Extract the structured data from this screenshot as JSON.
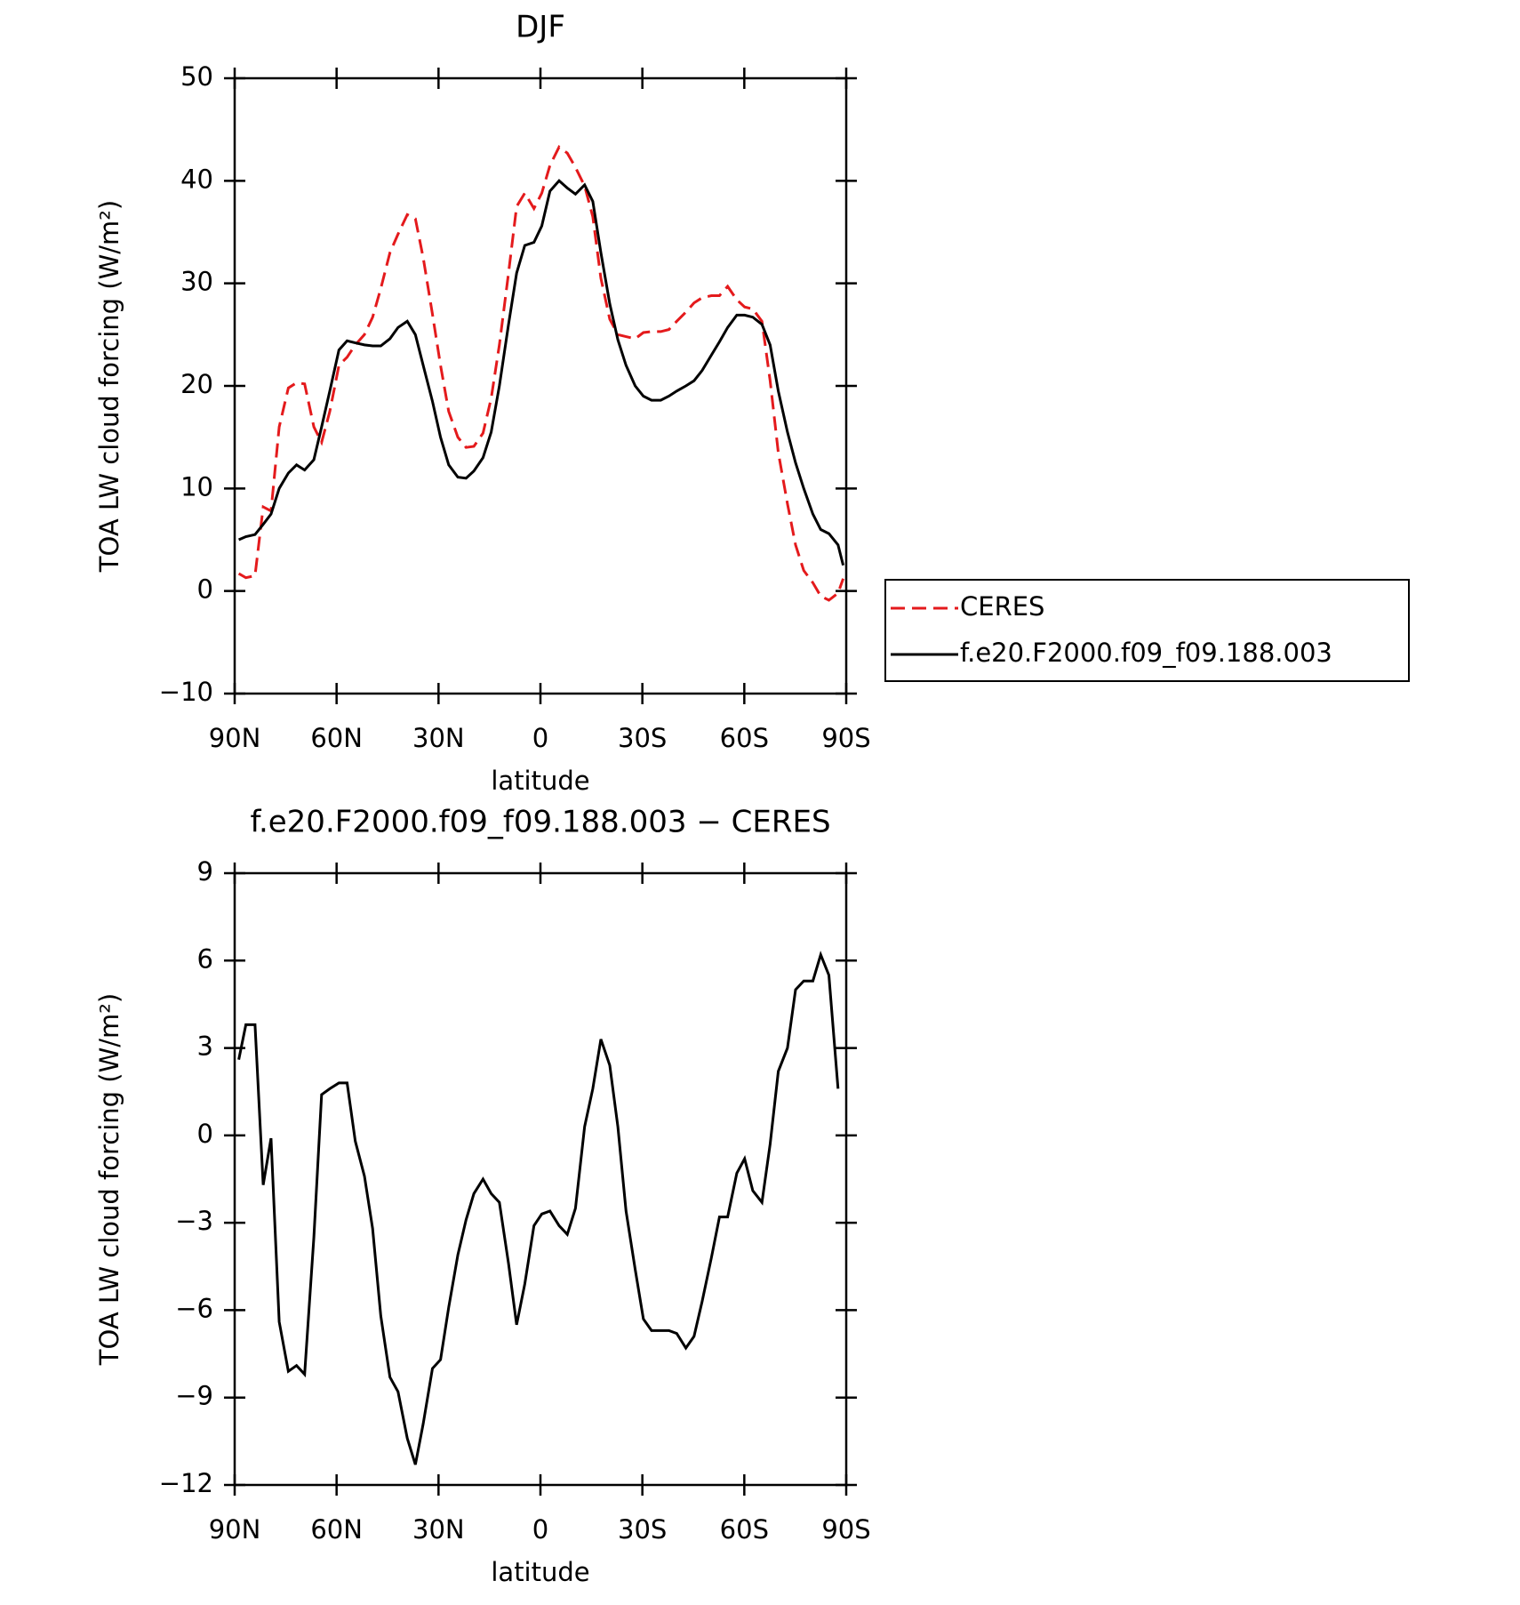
{
  "chart_data": [
    {
      "type": "line",
      "title": "DJF",
      "xlabel": "latitude",
      "ylabel": "TOA LW cloud forcing (W/m²)",
      "xlim": [
        90,
        -90
      ],
      "ylim": [
        -10,
        50
      ],
      "xticks": [
        {
          "value": 90,
          "label": "90N"
        },
        {
          "value": 60,
          "label": "60N"
        },
        {
          "value": 30,
          "label": "30N"
        },
        0,
        {
          "value": -30,
          "label": "30S"
        },
        {
          "value": -60,
          "label": "60S"
        },
        {
          "value": -90,
          "label": "90S"
        }
      ],
      "yticks": [
        {
          "value": -10,
          "label": "−10"
        },
        0,
        10,
        20,
        30,
        40,
        50
      ],
      "legend": "right",
      "x": [
        88.8,
        86.7,
        84.0,
        81.6,
        79.3,
        76.9,
        74.2,
        71.8,
        69.4,
        66.7,
        64.4,
        62.0,
        59.3,
        56.9,
        54.5,
        51.8,
        49.4,
        47.0,
        44.3,
        41.9,
        39.2,
        36.8,
        34.5,
        31.8,
        29.4,
        27.0,
        24.3,
        21.9,
        19.6,
        16.9,
        14.5,
        12.1,
        9.4,
        7.0,
        4.6,
        1.9,
        -0.4,
        -2.8,
        -5.5,
        -7.9,
        -10.3,
        -13.0,
        -15.4,
        -17.8,
        -20.4,
        -22.8,
        -25.2,
        -27.9,
        -30.3,
        -32.7,
        -35.4,
        -37.8,
        -40.1,
        -42.8,
        -45.2,
        -47.6,
        -50.3,
        -52.7,
        -55.1,
        -57.8,
        -60.1,
        -62.5,
        -65.2,
        -67.6,
        -70.0,
        -72.7,
        -75.1,
        -77.5,
        -80.2,
        -82.5,
        -84.9,
        -87.6,
        -89.1
      ],
      "series": [
        {
          "name": "CERES",
          "color": "#e41a1c",
          "linestyle": "dashed",
          "values": [
            1.7,
            1.3,
            1.5,
            8.2,
            7.8,
            16,
            19.8,
            20.3,
            20.2,
            16,
            14.5,
            17.5,
            22,
            22.8,
            24,
            25,
            26.7,
            29.5,
            33,
            34.8,
            36.7,
            36.3,
            32.5,
            27,
            22,
            17.5,
            15,
            14,
            14.1,
            15.4,
            18.8,
            24,
            31,
            37.5,
            38.8,
            37.3,
            38.8,
            41.5,
            43.3,
            42.7,
            41.3,
            39.5,
            36.5,
            30.5,
            26.5,
            25,
            24.8,
            24.6,
            25.2,
            25.3,
            25.3,
            25.5,
            26.3,
            27.2,
            28.1,
            28.6,
            28.8,
            28.8,
            29.7,
            28.4,
            27.7,
            27.5,
            26.3,
            20.5,
            13.5,
            8.5,
            4.5,
            2,
            0.8,
            -0.5,
            -0.9,
            -0.2,
            1.2
          ]
        },
        {
          "name": "f.e20.F2000.f09_f09.188.003",
          "color": "#000000",
          "linestyle": "solid",
          "values": [
            5.0,
            5.3,
            5.5,
            6.5,
            7.5,
            10,
            11.5,
            12.3,
            11.8,
            12.8,
            16,
            19.5,
            23.5,
            24.4,
            24.2,
            24,
            23.9,
            23.9,
            24.6,
            25.7,
            26.3,
            25,
            22,
            18.5,
            15,
            12.3,
            11.1,
            11,
            11.7,
            13,
            15.5,
            20,
            26,
            31,
            33.7,
            34,
            35.6,
            39,
            40,
            39.3,
            38.7,
            39.6,
            38,
            33,
            28,
            24.5,
            22,
            20,
            19,
            18.6,
            18.6,
            19,
            19.5,
            20,
            20.5,
            21.5,
            23,
            24.3,
            25.7,
            26.9,
            26.9,
            26.7,
            26,
            24,
            19.5,
            15.5,
            12.5,
            10,
            7.5,
            6,
            5.6,
            4.5,
            2.5
          ]
        }
      ]
    },
    {
      "type": "line",
      "title": "f.e20.F2000.f09_f09.188.003 − CERES",
      "xlabel": "latitude",
      "ylabel": "TOA LW cloud forcing (W/m²)",
      "xlim": [
        90,
        -90
      ],
      "ylim": [
        -12,
        9
      ],
      "xticks": [
        {
          "value": 90,
          "label": "90N"
        },
        {
          "value": 60,
          "label": "60N"
        },
        {
          "value": 30,
          "label": "30N"
        },
        0,
        {
          "value": -30,
          "label": "30S"
        },
        {
          "value": -60,
          "label": "60S"
        },
        {
          "value": -90,
          "label": "90S"
        }
      ],
      "yticks": [
        {
          "value": -12,
          "label": "−12"
        },
        {
          "value": -9,
          "label": "−9"
        },
        {
          "value": -6,
          "label": "−6"
        },
        {
          "value": -3,
          "label": "−3"
        },
        0,
        3,
        6,
        9
      ],
      "x": [
        88.8,
        86.7,
        84.0,
        81.6,
        79.3,
        76.9,
        74.2,
        71.8,
        69.4,
        66.7,
        64.4,
        62.0,
        59.3,
        56.9,
        54.5,
        51.8,
        49.4,
        47.0,
        44.3,
        41.9,
        39.2,
        36.8,
        34.5,
        31.8,
        29.4,
        27.0,
        24.3,
        21.9,
        19.6,
        16.9,
        14.5,
        12.1,
        9.4,
        7.0,
        4.6,
        1.9,
        -0.4,
        -2.8,
        -5.5,
        -7.9,
        -10.3,
        -13.0,
        -15.4,
        -17.8,
        -20.4,
        -22.8,
        -25.2,
        -27.9,
        -30.3,
        -32.7,
        -35.4,
        -37.8,
        -40.1,
        -42.8,
        -45.2,
        -47.6,
        -50.3,
        -52.7,
        -55.1,
        -57.8,
        -60.1,
        -62.5,
        -65.2,
        -67.6,
        -70.0,
        -72.7,
        -75.1,
        -77.5,
        -80.2,
        -82.5,
        -84.9,
        -87.6
      ],
      "series": [
        {
          "color": "#000000",
          "linestyle": "solid",
          "values": [
            2.6,
            3.8,
            3.8,
            -1.7,
            -0.1,
            -6.4,
            -8.1,
            -7.9,
            -8.2,
            -3.5,
            1.4,
            1.6,
            1.8,
            1.8,
            -0.2,
            -1.4,
            -3.2,
            -6.2,
            -8.3,
            -8.8,
            -10.4,
            -11.3,
            -9.9,
            -8,
            -7.7,
            -5.9,
            -4.1,
            -2.9,
            -2,
            -1.5,
            -2,
            -2.3,
            -4.4,
            -6.5,
            -5.1,
            -3.1,
            -2.7,
            -2.6,
            -3.1,
            -3.4,
            -2.5,
            0.3,
            1.6,
            3.3,
            2.4,
            0.3,
            -2.6,
            -4.6,
            -6.3,
            -6.7,
            -6.7,
            -6.7,
            -6.8,
            -7.3,
            -6.9,
            -5.7,
            -4.2,
            -2.8,
            -2.8,
            -1.3,
            -0.8,
            -1.9,
            -2.3,
            -0.3,
            2.2,
            3,
            5,
            5.3,
            5.3,
            6.2,
            5.5,
            1.6
          ]
        }
      ]
    }
  ]
}
